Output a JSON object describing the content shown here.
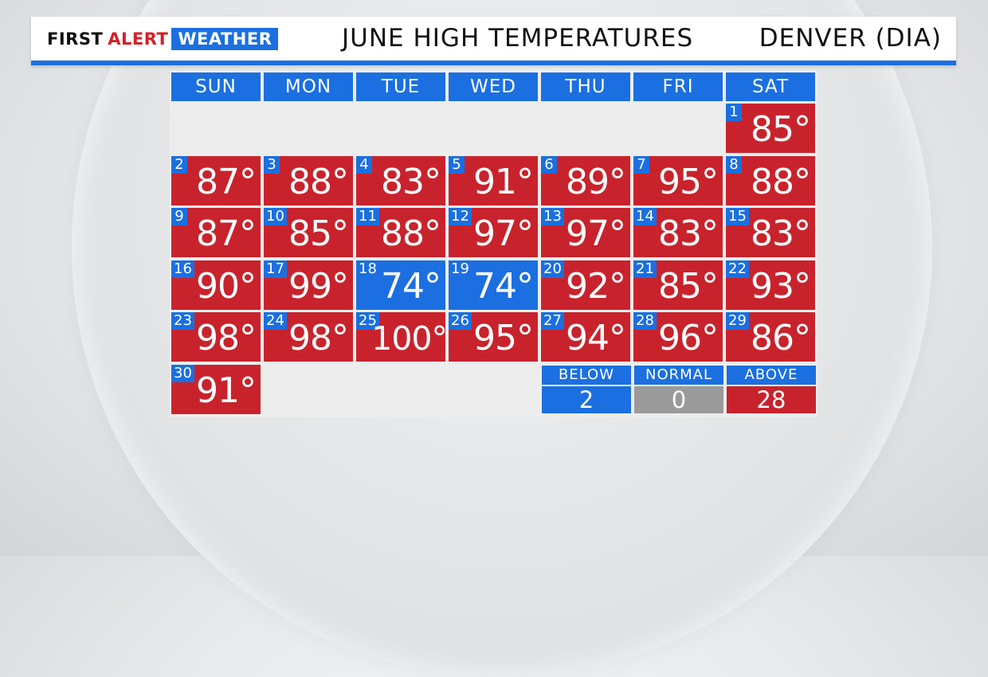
{
  "header": {
    "brand_first": "FIRST",
    "brand_alert": "ALERT",
    "brand_weather": "WEATHER",
    "title": "JUNE HIGH TEMPERATURES",
    "location": "DENVER (DIA)"
  },
  "colors": {
    "accent_blue": "#1b6fe0",
    "above_red": "#c8232c",
    "normal_gray": "#9a9a9a",
    "below_blue": "#1b6fe0"
  },
  "weekdays": [
    "SUN",
    "MON",
    "TUE",
    "WED",
    "THU",
    "FRI",
    "SAT"
  ],
  "first_weekday_index": 6,
  "days": [
    {
      "day": "1",
      "temp": "85°",
      "status": "above"
    },
    {
      "day": "2",
      "temp": "87°",
      "status": "above"
    },
    {
      "day": "3",
      "temp": "88°",
      "status": "above"
    },
    {
      "day": "4",
      "temp": "83°",
      "status": "above"
    },
    {
      "day": "5",
      "temp": "91°",
      "status": "above"
    },
    {
      "day": "6",
      "temp": "89°",
      "status": "above"
    },
    {
      "day": "7",
      "temp": "95°",
      "status": "above"
    },
    {
      "day": "8",
      "temp": "88°",
      "status": "above"
    },
    {
      "day": "9",
      "temp": "87°",
      "status": "above"
    },
    {
      "day": "10",
      "temp": "85°",
      "status": "above"
    },
    {
      "day": "11",
      "temp": "88°",
      "status": "above"
    },
    {
      "day": "12",
      "temp": "97°",
      "status": "above"
    },
    {
      "day": "13",
      "temp": "97°",
      "status": "above"
    },
    {
      "day": "14",
      "temp": "83°",
      "status": "above"
    },
    {
      "day": "15",
      "temp": "83°",
      "status": "above"
    },
    {
      "day": "16",
      "temp": "90°",
      "status": "above"
    },
    {
      "day": "17",
      "temp": "99°",
      "status": "above"
    },
    {
      "day": "18",
      "temp": "74°",
      "status": "below"
    },
    {
      "day": "19",
      "temp": "74°",
      "status": "below"
    },
    {
      "day": "20",
      "temp": "92°",
      "status": "above"
    },
    {
      "day": "21",
      "temp": "85°",
      "status": "above"
    },
    {
      "day": "22",
      "temp": "93°",
      "status": "above"
    },
    {
      "day": "23",
      "temp": "98°",
      "status": "above"
    },
    {
      "day": "24",
      "temp": "98°",
      "status": "above"
    },
    {
      "day": "25",
      "temp": "100°",
      "status": "above"
    },
    {
      "day": "26",
      "temp": "95°",
      "status": "above"
    },
    {
      "day": "27",
      "temp": "94°",
      "status": "above"
    },
    {
      "day": "28",
      "temp": "96°",
      "status": "above"
    },
    {
      "day": "29",
      "temp": "86°",
      "status": "above"
    },
    {
      "day": "30",
      "temp": "91°",
      "status": "above"
    }
  ],
  "legend": [
    {
      "label": "BELOW",
      "value": "2",
      "color": "#1b6fe0"
    },
    {
      "label": "NORMAL",
      "value": "0",
      "color": "#9a9a9a"
    },
    {
      "label": "ABOVE",
      "value": "28",
      "color": "#c8232c"
    }
  ]
}
